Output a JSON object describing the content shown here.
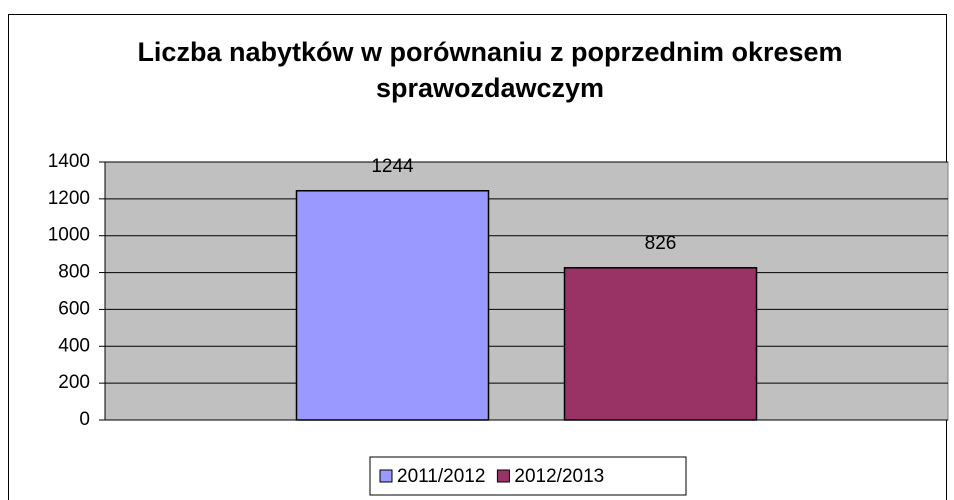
{
  "chart_data": {
    "type": "bar",
    "title": "Liczba nabytków w porównaniu z poprzednim okresem sprawozdawczym",
    "categories": [
      null
    ],
    "series": [
      {
        "name": "2011/2012",
        "color": "#9999ff",
        "values": [
          1244
        ]
      },
      {
        "name": "2012/2013",
        "color": "#993366",
        "values": [
          826
        ]
      }
    ],
    "ylim": [
      0,
      1400
    ],
    "yticks": [
      0,
      200,
      400,
      600,
      800,
      1000,
      1200,
      1400
    ],
    "grid": true,
    "legend": "bottom",
    "plot_background": "#c0c0c0"
  }
}
